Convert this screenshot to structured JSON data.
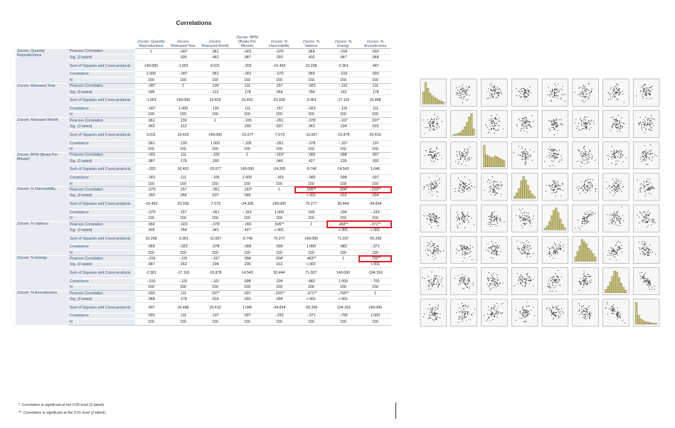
{
  "title": "Correlations",
  "columns": [
    "Zscore: Quantity Reproductions",
    "Zscore: Released Year",
    "Zscore: Released Month",
    "Zscore: BPM (Beats Per Minute)",
    "Zscore: % Danceability",
    "Zscore: % Valence",
    "Zscore: % Energy",
    "Zscore: % Acousticness"
  ],
  "stat_labels": [
    "Pearson Correlation",
    "Sig. (2-tailed)",
    "Sum of Squares and Cross-products",
    "Covariance",
    "N"
  ],
  "rows": [
    {
      "label": "Zscore: Quantity Reproductions",
      "values": [
        [
          "1",
          "-.007",
          ".061",
          "-.001",
          "-.070",
          ".069",
          "-.016",
          ".003"
        ],
        [
          "",
          ".935",
          ".462",
          ".987",
          ".393",
          ".402",
          ".847",
          ".968"
        ],
        [
          "149.000",
          "-1.001",
          "9.021",
          "-.203",
          "-10.463",
          "10.268",
          "-2.361",
          ".497"
        ],
        [
          "1.000",
          "-.007",
          ".061",
          "-.001",
          "-.070",
          ".069",
          "-.016",
          ".003"
        ],
        [
          "150",
          "150",
          "150",
          "150",
          "150",
          "150",
          "150",
          "150"
        ]
      ]
    },
    {
      "label": "Zscore: Released Year",
      "values": [
        [
          "-.007",
          "1",
          ".130",
          ".111",
          ".157",
          "-.023",
          "-.115",
          ".111"
        ],
        [
          ".935",
          "",
          ".112",
          ".178",
          ".056",
          ".784",
          ".162",
          ".178"
        ],
        [
          "-1.001",
          "149.000",
          "19.423",
          "16.491",
          "23.339",
          "-3.361",
          "-17.116",
          "16.488"
        ],
        [
          "-.007",
          "1.000",
          ".130",
          ".111",
          ".157",
          "-.023",
          "-.115",
          ".111"
        ],
        [
          "150",
          "150",
          "150",
          "150",
          "150",
          "150",
          "150",
          "150"
        ]
      ]
    },
    {
      "label": "Zscore: Released Month",
      "values": [
        [
          ".061",
          ".130",
          "1",
          "-.105",
          "-.051",
          "-.078",
          "-.107",
          ".197*"
        ],
        [
          ".462",
          ".112",
          "",
          ".200",
          ".537",
          ".341",
          ".194",
          ".015"
        ],
        [
          "9.021",
          "19.423",
          "149.000",
          "-15.677",
          "-7.573",
          "-11.667",
          "-15.878",
          "29.410"
        ],
        [
          ".061",
          ".130",
          "1.000",
          "-.105",
          "-.051",
          "-.078",
          "-.107",
          ".197"
        ],
        [
          "150",
          "150",
          "150",
          "150",
          "150",
          "150",
          "150",
          "150"
        ]
      ]
    },
    {
      "label": "Zscore: BPM (Beats Per Minute)",
      "values": [
        [
          "-.001",
          ".111",
          "-.105",
          "1",
          "-.163*",
          "-.065",
          ".098",
          ".007"
        ],
        [
          ".987",
          ".178",
          ".200",
          "",
          ".046",
          ".427",
          ".235",
          ".932"
        ],
        [
          "-.203",
          "16.491",
          "-15.677",
          "149.000",
          "-24.305",
          "-9.740",
          "14.543",
          "1.046"
        ],
        [
          "-.001",
          ".111",
          "-.105",
          "1.000",
          "-.163",
          "-.065",
          ".098",
          ".007"
        ],
        [
          "150",
          "150",
          "150",
          "150",
          "150",
          "150",
          "150",
          "150"
        ]
      ]
    },
    {
      "label": "Zscore: % Danceability",
      "values": [
        [
          "-.070",
          ".157",
          "-.051",
          "-.163*",
          "1",
          ".505**",
          ".204*",
          "-.233**"
        ],
        [
          ".393",
          ".056",
          ".537",
          ".046",
          "",
          "<.001",
          ".012",
          ".004"
        ],
        [
          "-10.463",
          "23.339",
          "-7.573",
          "-24.305",
          "149.000",
          "75.277",
          "30.444",
          "-34.654"
        ],
        [
          "-.070",
          ".157",
          "-.051",
          "-.163",
          "1.000",
          ".505",
          ".204",
          "-.233"
        ],
        [
          "150",
          "150",
          "150",
          "150",
          "150",
          "150",
          "150",
          "150"
        ]
      ]
    },
    {
      "label": "Zscore: % Valence",
      "values": [
        [
          ".069",
          "-.023",
          "-.078",
          "-.065",
          ".505**",
          "1",
          ".483**",
          "-.371**"
        ],
        [
          ".402",
          ".784",
          ".341",
          ".427",
          "<.001",
          "",
          "<.001",
          "<.001"
        ],
        [
          "10.268",
          "-3.361",
          "-11.667",
          "-9.740",
          "75.277",
          "149.000",
          "71.927",
          "-55.260"
        ],
        [
          ".069",
          "-.023",
          "-.078",
          "-.065",
          ".505",
          "1.000",
          ".483",
          "-.371"
        ],
        [
          "150",
          "150",
          "150",
          "150",
          "150",
          "150",
          "150",
          "150"
        ]
      ]
    },
    {
      "label": "Zscore: % Energy",
      "values": [
        [
          "-.016",
          "-.115",
          "-.107",
          ".098",
          ".204*",
          ".483**",
          "1",
          "-.700**"
        ],
        [
          ".847",
          ".162",
          ".194",
          ".235",
          ".012",
          "<.001",
          "",
          "<.001"
        ],
        [
          "-2.361",
          "-17.116",
          "-15.878",
          "14.543",
          "30.444",
          "71.927",
          "149.000",
          "-104.316"
        ],
        [
          "-.016",
          "-.115",
          "-.107",
          ".098",
          ".204",
          ".483",
          "1.000",
          "-.700"
        ],
        [
          "150",
          "150",
          "150",
          "150",
          "150",
          "150",
          "150",
          "150"
        ]
      ]
    },
    {
      "label": "Zscore: % Acousticness",
      "values": [
        [
          ".003",
          ".111",
          ".197*",
          ".007",
          "-.233**",
          "-.371**",
          "-.700**",
          "1"
        ],
        [
          ".968",
          ".178",
          ".015",
          ".932",
          ".004",
          "<.001",
          "<.001",
          ""
        ],
        [
          ".497",
          "16.488",
          "29.410",
          "1.046",
          "-34.654",
          "-55.260",
          "-104.316",
          "149.000"
        ],
        [
          ".003",
          ".111",
          ".197",
          ".007",
          "-.233",
          "-.371",
          "-.700",
          "1.000"
        ],
        [
          "150",
          "150",
          "150",
          "150",
          "150",
          "150",
          "150",
          "150"
        ]
      ]
    }
  ],
  "footnotes": [
    "*. Correlation is significant at the 0.05 level (2-tailed).",
    "**. Correlation is significant at the 0.01 level (2-tailed)."
  ],
  "highlights": [
    {
      "row": "Zscore: % Danceability",
      "stat": "Pearson Correlation",
      "columns": [
        "Zscore: % Valence",
        "Zscore: % Energy",
        "Zscore: % Acousticness"
      ]
    },
    {
      "row": "Zscore: % Valence",
      "stat": "Pearson Correlation",
      "columns": [
        "Zscore: % Energy",
        "Zscore: % Acousticness"
      ]
    },
    {
      "row": "Zscore: % Energy",
      "stat": "Pearson Correlation",
      "columns": [
        "Zscore: % Acousticness"
      ]
    }
  ],
  "colors": {
    "highlight": "#e0202a",
    "histogram": "#c8c27c",
    "histogram_edge": "#7d7a45",
    "point": "#333333",
    "panel_bg": "#f7f7f7"
  },
  "chart_data": {
    "type": "scatter",
    "subtype": "scatter-matrix",
    "variables": [
      "Zscore: Quantity Reproductions",
      "Zscore: Released Year",
      "Zscore: Released Month",
      "Zscore: BPM (Beats Per Minute)",
      "Zscore: % Danceability",
      "Zscore: % Valence",
      "Zscore: % Energy",
      "Zscore: % Acousticness"
    ],
    "n": 150,
    "diagonal": "histogram",
    "pearson_r": [
      [
        1,
        -0.007,
        0.061,
        -0.001,
        -0.07,
        0.069,
        -0.016,
        0.003
      ],
      [
        -0.007,
        1,
        0.13,
        0.111,
        0.157,
        -0.023,
        -0.115,
        0.111
      ],
      [
        0.061,
        0.13,
        1,
        -0.105,
        -0.051,
        -0.078,
        -0.107,
        0.197
      ],
      [
        -0.001,
        0.111,
        -0.105,
        1,
        -0.163,
        -0.065,
        0.098,
        0.007
      ],
      [
        -0.07,
        0.157,
        -0.051,
        -0.163,
        1,
        0.505,
        0.204,
        -0.233
      ],
      [
        0.069,
        -0.023,
        -0.078,
        -0.065,
        0.505,
        1,
        0.483,
        -0.371
      ],
      [
        -0.016,
        -0.115,
        -0.107,
        0.098,
        0.204,
        0.483,
        1,
        -0.7
      ],
      [
        0.003,
        0.111,
        0.197,
        0.007,
        -0.233,
        -0.371,
        -0.7,
        1
      ]
    ],
    "histograms": [
      [
        0.55,
        1.0,
        0.72,
        0.5,
        0.38,
        0.3,
        0.25,
        0.18,
        0.14,
        0.1
      ],
      [
        0.04,
        0.06,
        0.1,
        0.15,
        0.25,
        0.4,
        0.6,
        0.85,
        1.0,
        0.3
      ],
      [
        1.0,
        0.55,
        0.5,
        0.45,
        0.42,
        0.5,
        0.45,
        0.4,
        0.35,
        0.3
      ],
      [
        0.1,
        0.25,
        0.45,
        0.8,
        1.0,
        0.85,
        0.6,
        0.35,
        0.2,
        0.1
      ],
      [
        0.08,
        0.18,
        0.38,
        0.65,
        0.9,
        1.0,
        0.8,
        0.5,
        0.25,
        0.1
      ],
      [
        0.2,
        0.45,
        0.7,
        1.0,
        0.9,
        0.8,
        0.6,
        0.5,
        0.35,
        0.2
      ],
      [
        0.15,
        0.3,
        0.5,
        0.75,
        1.0,
        0.95,
        0.7,
        0.45,
        0.25,
        0.12
      ],
      [
        1.0,
        0.42,
        0.25,
        0.18,
        0.12,
        0.1,
        0.08,
        0.06,
        0.05,
        0.04
      ]
    ]
  }
}
